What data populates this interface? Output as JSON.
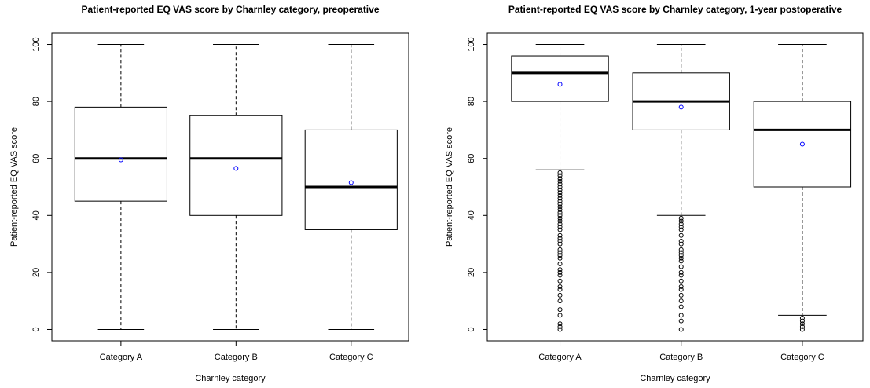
{
  "chart_data": [
    {
      "type": "box",
      "title": "Patient-reported EQ VAS score by Charnley category, preoperative",
      "xlabel": "Charnley category",
      "ylabel": "Patient-reported EQ VAS score",
      "categories": [
        "Category A",
        "Category B",
        "Category C"
      ],
      "boxes": [
        {
          "min": 0,
          "q1": 45,
          "median": 60,
          "q3": 78,
          "max": 100,
          "mean": 59.5,
          "outliers": []
        },
        {
          "min": 0,
          "q1": 40,
          "median": 60,
          "q3": 75,
          "max": 100,
          "mean": 56.5,
          "outliers": []
        },
        {
          "min": 0,
          "q1": 35,
          "median": 50,
          "q3": 70,
          "max": 100,
          "mean": 51.5,
          "outliers": []
        }
      ],
      "mean_color": "#0000ff",
      "ylim": [
        -4,
        104
      ],
      "yticks": [
        0,
        20,
        40,
        60,
        80,
        100
      ]
    },
    {
      "type": "box",
      "title": "Patient-reported EQ VAS score by Charnley category, 1-year postoperative",
      "xlabel": "Charnley category",
      "ylabel": "Patient-reported EQ VAS score",
      "categories": [
        "Category A",
        "Category B",
        "Category C"
      ],
      "boxes": [
        {
          "min": 56,
          "q1": 80,
          "median": 90,
          "q3": 96,
          "max": 100,
          "mean": 86,
          "outliers": [
            0,
            1,
            2,
            5,
            7,
            10,
            12,
            14,
            15,
            17,
            19,
            20,
            21,
            23,
            25,
            26,
            27,
            28,
            30,
            31,
            32,
            33,
            35,
            36,
            37,
            38,
            39,
            40,
            41,
            42,
            43,
            44,
            45,
            46,
            47,
            48,
            49,
            50,
            51,
            52,
            53,
            54,
            55
          ]
        },
        {
          "min": 40,
          "q1": 70,
          "median": 80,
          "q3": 90,
          "max": 100,
          "mean": 78,
          "outliers": [
            0,
            3,
            5,
            8,
            10,
            12,
            14,
            15,
            17,
            19,
            20,
            22,
            24,
            25,
            26,
            27,
            28,
            30,
            31,
            33,
            35,
            36,
            37,
            38,
            39
          ]
        },
        {
          "min": 5,
          "q1": 50,
          "median": 70,
          "q3": 80,
          "max": 100,
          "mean": 65,
          "outliers": [
            0,
            1,
            2,
            3,
            4
          ]
        }
      ],
      "mean_color": "#0000ff",
      "ylim": [
        -4,
        104
      ],
      "yticks": [
        0,
        20,
        40,
        60,
        80,
        100
      ]
    }
  ]
}
